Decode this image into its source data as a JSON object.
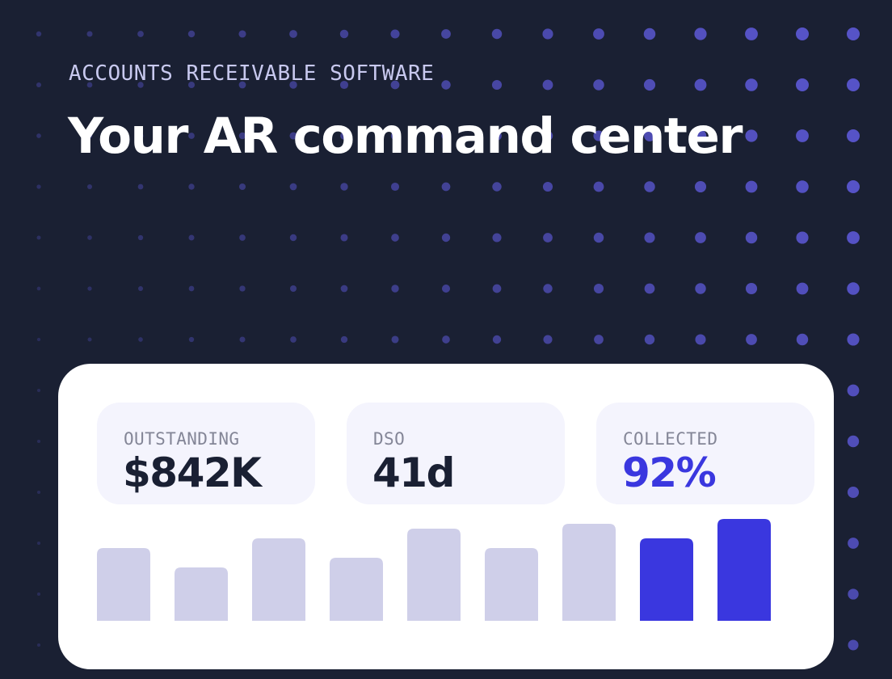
{
  "eyebrow": "ACCOUNTS RECEIVABLE SOFTWARE",
  "headline": "Your AR command center",
  "stats": [
    {
      "label": "OUTSTANDING",
      "value": "$842K"
    },
    {
      "label": "DSO",
      "value": "41d"
    },
    {
      "label": "COLLECTED",
      "value": "92%"
    }
  ],
  "colors": {
    "background": "#1a2033",
    "accent": "#3a37df",
    "bar_muted": "#cfcfe9",
    "dot": "#5653c7",
    "card": "#ffffff",
    "stat_tile": "#f4f4fd"
  },
  "chart_data": {
    "type": "bar",
    "values": [
      90,
      66,
      102,
      78,
      114,
      90,
      120,
      102,
      126
    ],
    "highlighted": [
      false,
      false,
      false,
      false,
      false,
      false,
      false,
      true,
      true
    ],
    "ylim": [
      0,
      126
    ]
  }
}
